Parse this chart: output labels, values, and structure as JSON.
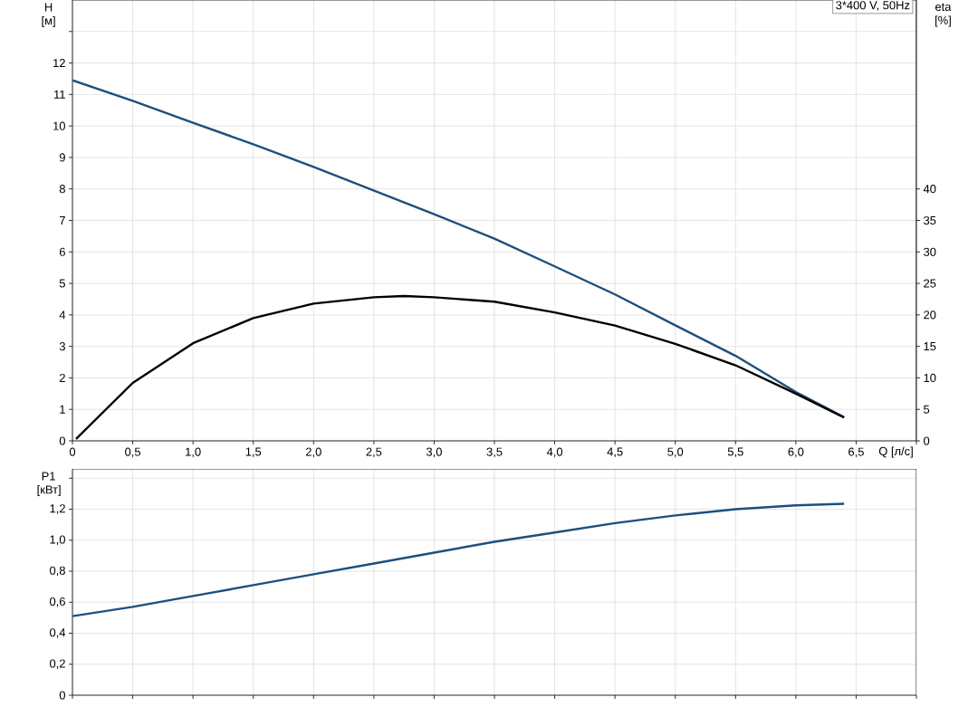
{
  "chart_data": [
    {
      "type": "line",
      "title": "3*400 V, 50Hz",
      "xlabel": "Q [л/с]",
      "ylabel": "H [м]",
      "y2label": "eta [%]",
      "xlim": [
        0,
        7
      ],
      "xticks": [
        0,
        {
          "value": 0.5,
          "label": "0,5"
        },
        {
          "value": 1,
          "label": "1,0"
        },
        {
          "value": 1.5,
          "label": "1,5"
        },
        {
          "value": 2,
          "label": "2,0"
        },
        {
          "value": 2.5,
          "label": "2,5"
        },
        {
          "value": 3,
          "label": "3,0"
        },
        {
          "value": 3.5,
          "label": "3,5"
        },
        {
          "value": 4,
          "label": "4,0"
        },
        {
          "value": 4.5,
          "label": "4,5"
        },
        {
          "value": 5,
          "label": "5,0"
        },
        {
          "value": 5.5,
          "label": "5,5"
        },
        {
          "value": 6,
          "label": "6,0"
        },
        {
          "value": 6.5,
          "label": "6,5"
        },
        {
          "value": 7,
          "label": null
        }
      ],
      "ylim": [
        0,
        14
      ],
      "yticks": [
        0,
        1,
        2,
        3,
        4,
        5,
        6,
        7,
        8,
        9,
        10,
        11,
        12,
        {
          "value": 13,
          "label": null
        }
      ],
      "y2lim": [
        0,
        70
      ],
      "y2ticks": [
        0,
        5,
        10,
        15,
        20,
        25,
        30,
        35,
        40
      ],
      "grid": true,
      "series": [
        {
          "color": "#1d4f7e",
          "x": [
            0,
            0.5,
            1,
            1.5,
            2,
            2.5,
            3,
            3.5,
            4,
            4.5,
            5,
            5.5,
            6,
            6.4
          ],
          "values": [
            11.45,
            10.8,
            10.1,
            9.42,
            8.7,
            7.95,
            7.2,
            6.42,
            5.54,
            4.65,
            3.67,
            2.7,
            1.55,
            0.75
          ]
        },
        {
          "color": "#000000",
          "axis": "y2",
          "x": [
            0.03,
            0.5,
            1,
            1.5,
            2,
            2.5,
            2.75,
            3,
            3.5,
            4,
            4.5,
            5,
            5.5,
            6,
            6.4
          ],
          "values": [
            0.3,
            9.2,
            15.5,
            19.5,
            21.8,
            22.8,
            23,
            22.8,
            22.1,
            20.4,
            18.3,
            15.4,
            12,
            7.5,
            3.7
          ]
        }
      ]
    },
    {
      "type": "line",
      "ylabel": "P1 [кВт]",
      "xlim": [
        0,
        7
      ],
      "tick_labels": "y",
      "xticks": [
        0,
        0.5,
        1,
        1.5,
        2,
        2.5,
        3,
        3.5,
        4,
        4.5,
        5,
        5.5,
        6,
        6.5,
        7
      ],
      "ylim": [
        0,
        1.46
      ],
      "yticks": [
        0,
        {
          "value": 0.2,
          "label": "0,2"
        },
        {
          "value": 0.4,
          "label": "0,4"
        },
        {
          "value": 0.6,
          "label": "0,6"
        },
        {
          "value": 0.8,
          "label": "0,8"
        },
        {
          "value": 1,
          "label": "1,0"
        },
        {
          "value": 1.2,
          "label": "1,2"
        },
        {
          "value": 1.4,
          "label": null
        }
      ],
      "grid": true,
      "series": [
        {
          "color": "#1d4f7e",
          "x": [
            0,
            0.5,
            1,
            1.5,
            2,
            2.5,
            3,
            3.5,
            4,
            4.5,
            5,
            5.5,
            6,
            6.4
          ],
          "values": [
            0.51,
            0.57,
            0.64,
            0.71,
            0.78,
            0.85,
            0.92,
            0.99,
            1.05,
            1.11,
            1.16,
            1.2,
            1.225,
            1.235
          ]
        }
      ]
    }
  ]
}
